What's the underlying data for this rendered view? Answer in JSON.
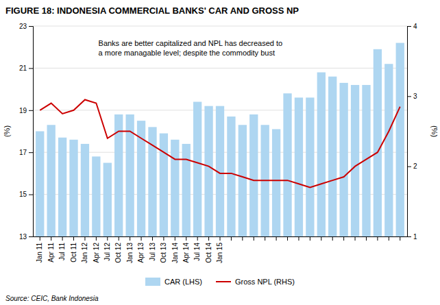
{
  "chart_data": {
    "type": "bar",
    "title": "FIGURE 18: INDONESIA COMMERCIAL BANKS' CAR AND GROSS NP",
    "annotations": [
      "Banks are better capitalized and NPL has decreased to",
      "a more managable level; despite the commodity bust"
    ],
    "source": "Source: CEIC, Bank Indonesia",
    "ylabel": "(%)",
    "y2label": "(%)",
    "ylim": [
      13,
      23
    ],
    "yticks": [
      13,
      15,
      17,
      19,
      21,
      23
    ],
    "y2lim": [
      1,
      4
    ],
    "y2ticks": [
      1,
      2,
      3,
      4
    ],
    "grid": true,
    "legend": "bottom",
    "categories": [
      "Jan 11",
      "Apr 11",
      "Jul 11",
      "Oct 11",
      "Jan 12",
      "Apr 12",
      "Jul 12",
      "Oct 12",
      "Jan 13",
      "Apr 13",
      "Jul 13",
      "Oct 13",
      "Jan 14",
      "Apr 14",
      "Jul 14",
      "Oct 14",
      "Jan 15",
      null,
      null,
      null,
      null,
      null,
      null,
      null,
      null,
      null,
      null,
      null,
      null,
      null,
      null,
      null,
      null
    ],
    "series": [
      {
        "name": "CAR (LHS)",
        "type": "bar",
        "color": "#AED6F1",
        "values": [
          18.0,
          18.3,
          17.7,
          17.6,
          17.4,
          16.8,
          16.5,
          18.8,
          18.8,
          18.5,
          18.2,
          17.9,
          17.6,
          17.4,
          19.4,
          19.2,
          19.2,
          18.7,
          18.3,
          18.8,
          18.3,
          18.1,
          19.8,
          19.6,
          19.6,
          20.8,
          20.6,
          20.3,
          20.2,
          20.2,
          21.9,
          21.2,
          22.2
        ]
      },
      {
        "name": "Gross NPL (RHS)",
        "type": "line",
        "color": "#CC0000",
        "axis": "y2",
        "values": [
          2.8,
          2.9,
          2.75,
          2.8,
          2.95,
          2.9,
          2.4,
          2.5,
          2.5,
          2.4,
          2.3,
          2.2,
          2.1,
          2.1,
          2.05,
          2.0,
          1.9,
          1.9,
          1.85,
          1.8,
          1.8,
          1.8,
          1.8,
          1.75,
          1.7,
          1.75,
          1.8,
          1.85,
          2.0,
          2.1,
          2.2,
          2.5,
          2.85
        ]
      }
    ]
  }
}
